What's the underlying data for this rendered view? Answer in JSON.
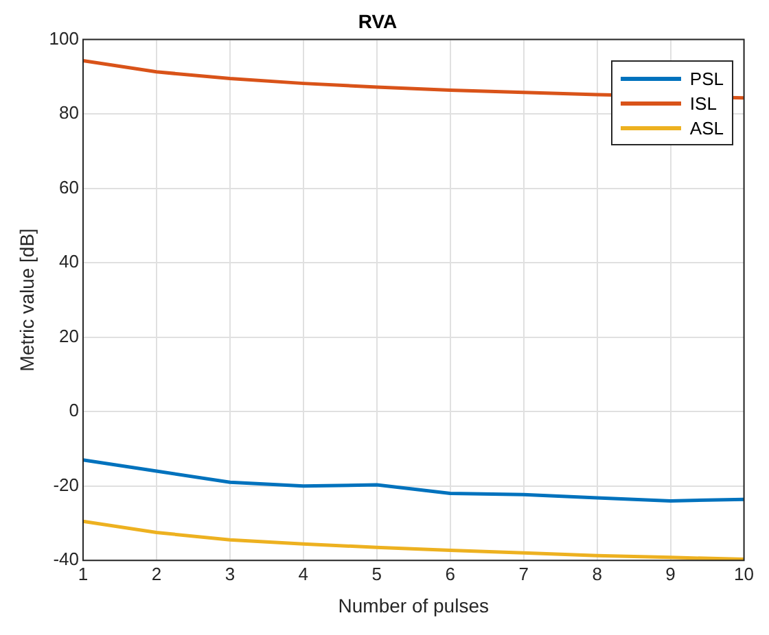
{
  "chart_data": {
    "type": "line",
    "title": "RVA",
    "xlabel": "Number of pulses",
    "ylabel": "Metric value [dB]",
    "x": [
      1,
      2,
      3,
      4,
      5,
      6,
      7,
      8,
      9,
      10
    ],
    "xlim": [
      1,
      10
    ],
    "xticks": [
      1,
      2,
      3,
      4,
      5,
      6,
      7,
      8,
      9,
      10
    ],
    "ylim": [
      -40,
      100
    ],
    "yticks": [
      -40,
      -20,
      0,
      20,
      40,
      60,
      80,
      100
    ],
    "grid": true,
    "legend": "top right",
    "marker": "none",
    "line_style": "solid",
    "series": [
      {
        "name": "PSL",
        "color": "#0072bd",
        "values": [
          -13,
          -16,
          -19,
          -20,
          -19.7,
          -22,
          -22.3,
          -23.2,
          -24,
          -23.6
        ]
      },
      {
        "name": "ISL",
        "color": "#d95319",
        "values": [
          94.3,
          91.3,
          89.5,
          88.2,
          87.2,
          86.4,
          85.8,
          85.2,
          null,
          84.3
        ]
      },
      {
        "name": "ASL",
        "color": "#edb120",
        "values": [
          -29.5,
          -32.5,
          -34.5,
          -35.6,
          -36.5,
          -37.3,
          -38,
          -38.7,
          -39.2,
          -39.7
        ]
      }
    ]
  }
}
